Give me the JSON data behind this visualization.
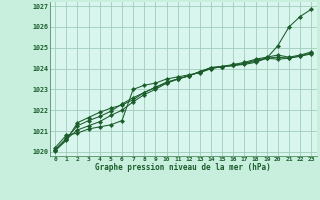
{
  "background_color": "#c8eedd",
  "plot_bg_color": "#d8f5ee",
  "grid_color": "#a0ccbb",
  "line_color": "#1a5c2a",
  "marker_color": "#1a5c2a",
  "xlabel": "Graphe pression niveau de la mer (hPa)",
  "ylim": [
    1019.8,
    1027.2
  ],
  "xlim": [
    -0.5,
    23.5
  ],
  "yticks": [
    1020,
    1021,
    1022,
    1023,
    1024,
    1025,
    1026,
    1027
  ],
  "xticks": [
    0,
    1,
    2,
    3,
    4,
    5,
    6,
    7,
    8,
    9,
    10,
    11,
    12,
    13,
    14,
    15,
    16,
    17,
    18,
    19,
    20,
    21,
    22,
    23
  ],
  "series": [
    [
      1020.2,
      1020.8,
      1020.9,
      1021.1,
      1021.2,
      1021.3,
      1021.5,
      1023.0,
      1023.2,
      1023.3,
      1023.5,
      1023.6,
      1023.7,
      1023.8,
      1024.0,
      1024.1,
      1024.15,
      1024.2,
      1024.3,
      1024.5,
      1025.1,
      1026.0,
      1026.5,
      1026.85
    ],
    [
      1020.05,
      1020.55,
      1021.4,
      1021.65,
      1021.9,
      1022.1,
      1022.25,
      1022.5,
      1022.85,
      1023.1,
      1023.35,
      1023.5,
      1023.65,
      1023.85,
      1024.05,
      1024.1,
      1024.15,
      1024.25,
      1024.4,
      1024.5,
      1024.45,
      1024.5,
      1024.6,
      1024.75
    ],
    [
      1020.1,
      1020.65,
      1021.25,
      1021.5,
      1021.7,
      1021.95,
      1022.3,
      1022.6,
      1022.85,
      1023.1,
      1023.3,
      1023.5,
      1023.65,
      1023.85,
      1024.05,
      1024.1,
      1024.2,
      1024.3,
      1024.45,
      1024.55,
      1024.65,
      1024.55,
      1024.65,
      1024.8
    ],
    [
      1020.1,
      1020.6,
      1021.05,
      1021.25,
      1021.45,
      1021.75,
      1022.0,
      1022.4,
      1022.75,
      1023.0,
      1023.3,
      1023.5,
      1023.65,
      1023.85,
      1024.0,
      1024.1,
      1024.15,
      1024.25,
      1024.35,
      1024.5,
      1024.55,
      1024.5,
      1024.6,
      1024.7
    ]
  ]
}
